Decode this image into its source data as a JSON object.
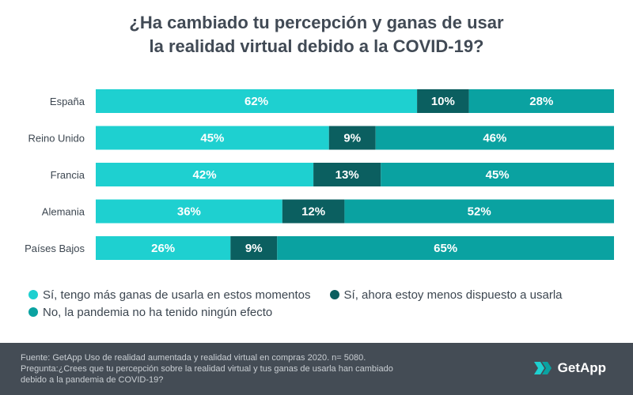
{
  "title": {
    "line1": "¿Ha cambiado tu percepción y ganas de usar",
    "line2": "la realidad virtual debido a la COVID-19?"
  },
  "chart_data": {
    "type": "bar",
    "orientation": "horizontal",
    "stacked": true,
    "title": "¿Ha cambiado tu percepción y ganas de usar la realidad virtual debido a la COVID-19?",
    "categories": [
      "España",
      "Reino Unido",
      "Francia",
      "Alemania",
      "Países Bajos"
    ],
    "series": [
      {
        "name": "Sí, tengo más ganas de usarla en estos momentos",
        "color": "#1ed0d0",
        "values": [
          62,
          45,
          42,
          36,
          26
        ]
      },
      {
        "name": "Sí, ahora estoy menos dispuesto a usarla",
        "color": "#0b5f60",
        "values": [
          10,
          9,
          13,
          12,
          9
        ]
      },
      {
        "name": "No, la pandemia no ha tenido ningún efecto",
        "color": "#0aa2a1",
        "values": [
          28,
          46,
          45,
          52,
          65
        ]
      }
    ],
    "value_suffix": "%",
    "xlim": [
      0,
      100
    ],
    "legend_position": "bottom"
  },
  "footer": {
    "source": "Fuente: GetApp Uso de realidad aumentada y realidad virtual en compras 2020. n= 5080.",
    "question_line1": "Pregunta:¿Crees que tu percepción sobre la realidad virtual y tus ganas de usarla han cambiado",
    "question_line2": "debido a la pandemia de COVID-19?",
    "logo_text": "GetApp"
  }
}
